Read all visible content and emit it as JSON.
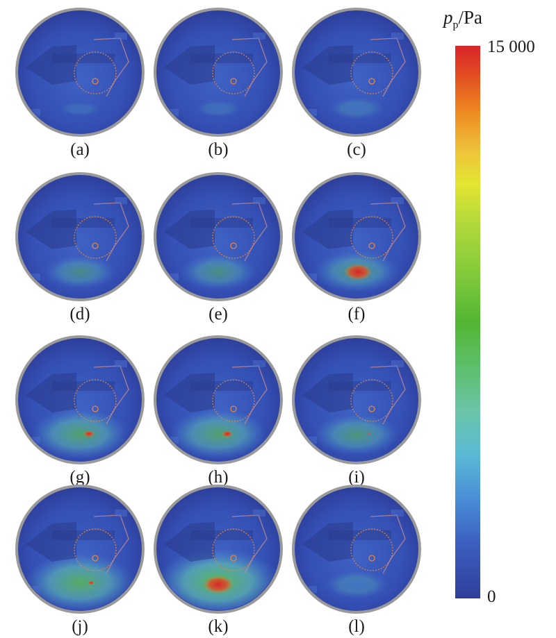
{
  "colorbar": {
    "symbol": "p",
    "subscript": "p",
    "unit": "/Pa",
    "max_label": "15 000",
    "min_label": "0",
    "colors": [
      "#d8242a",
      "#ee8a22",
      "#e3e531",
      "#52b533",
      "#5ab9d5",
      "#2f3e9a"
    ]
  },
  "panels": [
    {
      "label": "(a)",
      "spread": 0.0,
      "hot": 0.0
    },
    {
      "label": "(b)",
      "spread": 0.05,
      "hot": 0.0
    },
    {
      "label": "(c)",
      "spread": 0.15,
      "hot": 0.0
    },
    {
      "label": "(d)",
      "spread": 0.35,
      "hot": 0.0
    },
    {
      "label": "(e)",
      "spread": 0.4,
      "hot": 0.0
    },
    {
      "label": "(f)",
      "spread": 0.5,
      "hot": 0.9
    },
    {
      "label": "(g)",
      "spread": 0.65,
      "hot": 0.35
    },
    {
      "label": "(h)",
      "spread": 0.65,
      "hot": 0.35
    },
    {
      "label": "(i)",
      "spread": 0.5,
      "hot": 0.1
    },
    {
      "label": "(j)",
      "spread": 0.8,
      "hot": 0.2
    },
    {
      "label": "(k)",
      "spread": 0.95,
      "hot": 1.0
    },
    {
      "label": "(l)",
      "spread": 0.25,
      "hot": 0.0
    }
  ]
}
